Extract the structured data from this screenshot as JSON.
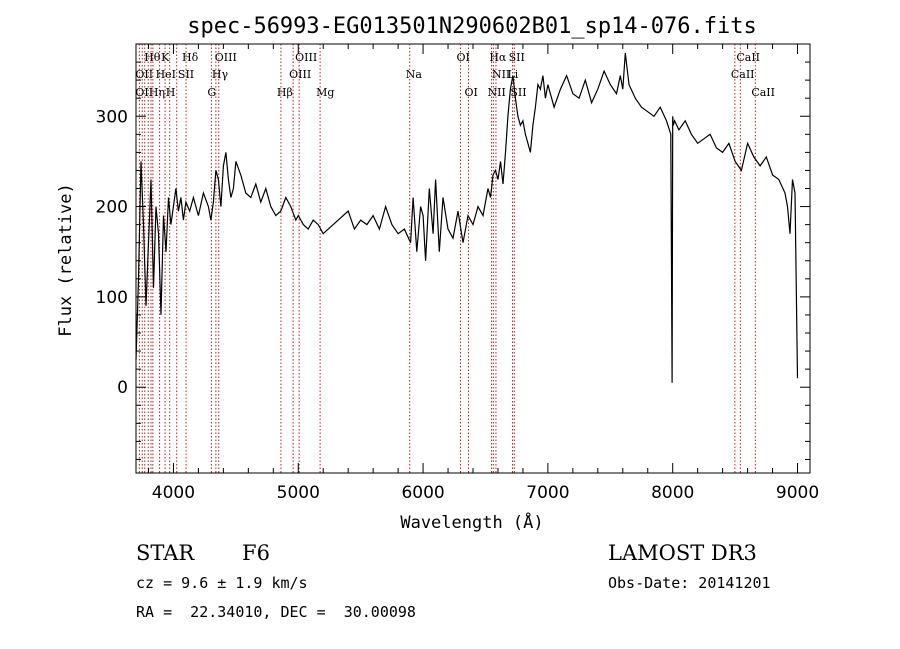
{
  "chart_data": {
    "type": "line",
    "title": "spec-56993-EG013501N290602B01_sp14-076.fits",
    "xlabel": "Wavelength (Å)",
    "ylabel": "Flux (relative)",
    "xlim": [
      3700,
      9100
    ],
    "ylim": [
      -95,
      380
    ],
    "xticks": [
      4000,
      5000,
      6000,
      7000,
      8000,
      9000
    ],
    "yticks": [
      0,
      100,
      200,
      300
    ],
    "grid": false,
    "series": [
      {
        "values_desc": "flux",
        "x": [
          3700,
          3720,
          3740,
          3760,
          3780,
          3800,
          3820,
          3840,
          3860,
          3880,
          3900,
          3920,
          3940,
          3960,
          3980,
          4000,
          4020,
          4040,
          4060,
          4080,
          4100,
          4130,
          4160,
          4200,
          4240,
          4280,
          4300,
          4320,
          4340,
          4360,
          4380,
          4400,
          4420,
          4440,
          4460,
          4480,
          4500,
          4540,
          4580,
          4620,
          4660,
          4700,
          4740,
          4780,
          4820,
          4860,
          4900,
          4940,
          4980,
          5000,
          5040,
          5080,
          5120,
          5160,
          5200,
          5240,
          5280,
          5320,
          5360,
          5400,
          5450,
          5500,
          5550,
          5600,
          5650,
          5700,
          5750,
          5800,
          5850,
          5900,
          5920,
          5950,
          5980,
          6000,
          6020,
          6050,
          6080,
          6100,
          6130,
          6160,
          6200,
          6240,
          6280,
          6320,
          6360,
          6400,
          6440,
          6480,
          6520,
          6540,
          6560,
          6580,
          6600,
          6620,
          6640,
          6660,
          6680,
          6700,
          6720,
          6740,
          6760,
          6780,
          6800,
          6820,
          6840,
          6860,
          6880,
          6900,
          6920,
          6940,
          6960,
          6980,
          7000,
          7050,
          7100,
          7150,
          7200,
          7250,
          7300,
          7350,
          7400,
          7450,
          7500,
          7550,
          7580,
          7600,
          7620,
          7650,
          7700,
          7750,
          7800,
          7850,
          7900,
          7950,
          7985,
          7995,
          8000,
          8005,
          8015,
          8050,
          8100,
          8150,
          8200,
          8250,
          8300,
          8350,
          8400,
          8450,
          8500,
          8550,
          8600,
          8650,
          8700,
          8750,
          8800,
          8850,
          8900,
          8920,
          8940,
          8960,
          8980,
          9000
        ],
        "y": [
          30,
          120,
          250,
          180,
          90,
          160,
          230,
          110,
          200,
          170,
          80,
          190,
          150,
          210,
          180,
          200,
          220,
          195,
          210,
          185,
          205,
          195,
          210,
          190,
          215,
          200,
          185,
          205,
          240,
          230,
          200,
          245,
          260,
          230,
          210,
          220,
          250,
          235,
          215,
          210,
          225,
          205,
          220,
          200,
          190,
          195,
          210,
          200,
          185,
          190,
          180,
          175,
          185,
          180,
          170,
          175,
          180,
          185,
          190,
          195,
          175,
          185,
          180,
          190,
          175,
          200,
          180,
          170,
          175,
          160,
          210,
          150,
          200,
          190,
          140,
          220,
          170,
          230,
          150,
          210,
          175,
          165,
          195,
          160,
          190,
          180,
          200,
          190,
          220,
          210,
          235,
          240,
          230,
          250,
          225,
          260,
          300,
          330,
          345,
          320,
          300,
          290,
          295,
          280,
          270,
          260,
          290,
          310,
          335,
          330,
          345,
          320,
          335,
          310,
          330,
          345,
          325,
          320,
          340,
          315,
          330,
          350,
          335,
          325,
          345,
          330,
          370,
          335,
          320,
          310,
          305,
          300,
          310,
          295,
          280,
          5,
          300,
          290,
          295,
          285,
          295,
          280,
          270,
          275,
          280,
          265,
          260,
          270,
          250,
          240,
          270,
          255,
          245,
          255,
          235,
          230,
          215,
          200,
          170,
          230,
          215,
          10
        ]
      }
    ],
    "line_markers": {
      "wavelengths": [
        3727,
        3750,
        3770,
        3798,
        3820,
        3835,
        3889,
        3933,
        3970,
        4026,
        4101,
        4304,
        4340,
        4363,
        4861,
        4959,
        5007,
        5175,
        5893,
        6300,
        6364,
        6548,
        6563,
        6584,
        6717,
        6731,
        8498,
        8542,
        8662
      ],
      "labels": [
        {
          "text": "Hθ",
          "x": 3798,
          "row": 1
        },
        {
          "text": "K",
          "x": 3933,
          "row": 1
        },
        {
          "text": "Hδ",
          "x": 4101,
          "row": 1
        },
        {
          "text": "OIII",
          "x": 4363,
          "row": 1
        },
        {
          "text": "OIII",
          "x": 5007,
          "row": 1
        },
        {
          "text": "OI",
          "x": 6300,
          "row": 1
        },
        {
          "text": "Hα",
          "x": 6563,
          "row": 1
        },
        {
          "text": "SII",
          "x": 6717,
          "row": 1
        },
        {
          "text": "CaII",
          "x": 8542,
          "row": 1
        },
        {
          "text": "OII",
          "x": 3727,
          "row": 2
        },
        {
          "text": "HeI",
          "x": 3889,
          "row": 2
        },
        {
          "text": "SII",
          "x": 4068,
          "row": 2
        },
        {
          "text": "Hγ",
          "x": 4340,
          "row": 2
        },
        {
          "text": "OIII",
          "x": 4959,
          "row": 2
        },
        {
          "text": "Na",
          "x": 5893,
          "row": 2
        },
        {
          "text": "NII",
          "x": 6584,
          "row": 2
        },
        {
          "text": "Li",
          "x": 6708,
          "row": 2
        },
        {
          "text": "CaII",
          "x": 8498,
          "row": 2
        },
        {
          "text": "OII",
          "x": 3727,
          "row": 3
        },
        {
          "text": "Hη",
          "x": 3835,
          "row": 3
        },
        {
          "text": "H",
          "x": 3970,
          "row": 3
        },
        {
          "text": "G",
          "x": 4304,
          "row": 3
        },
        {
          "text": "Hβ",
          "x": 4861,
          "row": 3
        },
        {
          "text": "Mg",
          "x": 5175,
          "row": 3
        },
        {
          "text": "OI",
          "x": 6364,
          "row": 3
        },
        {
          "text": "NII",
          "x": 6548,
          "row": 3
        },
        {
          "text": "SII",
          "x": 6731,
          "row": 3
        },
        {
          "text": "CaII",
          "x": 8662,
          "row": 3
        }
      ]
    }
  },
  "info": {
    "class": "STAR",
    "subclass": "F6",
    "survey": "LAMOST DR3",
    "cz": "cz = 9.6 ± 1.9 km/s",
    "obs_date": "Obs-Date: 20141201",
    "radec": "RA =  22.34010, DEC =  30.00098"
  }
}
